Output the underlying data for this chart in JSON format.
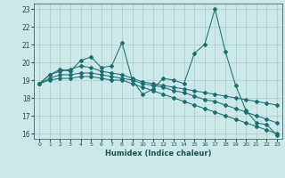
{
  "xlabel": "Humidex (Indice chaleur)",
  "ylabel": "",
  "bg_color": "#cce8e8",
  "grid_color": "#aacccc",
  "line_color": "#1a7070",
  "xlim": [
    -0.5,
    23.5
  ],
  "ylim": [
    15.7,
    23.3
  ],
  "xticks": [
    0,
    1,
    2,
    3,
    4,
    5,
    6,
    7,
    8,
    9,
    10,
    11,
    12,
    13,
    14,
    15,
    16,
    17,
    18,
    19,
    20,
    21,
    22,
    23
  ],
  "yticks": [
    16,
    17,
    18,
    19,
    20,
    21,
    22,
    23
  ],
  "series": [
    [
      18.8,
      19.3,
      19.6,
      19.5,
      20.1,
      20.3,
      19.7,
      19.8,
      21.1,
      19.0,
      18.2,
      18.5,
      19.1,
      19.0,
      18.8,
      20.5,
      21.0,
      23.0,
      20.6,
      18.7,
      17.3,
      16.6,
      16.5,
      15.9
    ],
    [
      18.8,
      19.3,
      19.5,
      19.6,
      19.8,
      19.7,
      19.5,
      19.4,
      19.3,
      19.1,
      18.9,
      18.8,
      18.7,
      18.6,
      18.5,
      18.4,
      18.3,
      18.2,
      18.1,
      18.0,
      17.9,
      17.8,
      17.7,
      17.6
    ],
    [
      18.8,
      19.1,
      19.3,
      19.3,
      19.4,
      19.4,
      19.3,
      19.2,
      19.1,
      19.0,
      18.8,
      18.7,
      18.6,
      18.4,
      18.3,
      18.1,
      17.9,
      17.8,
      17.6,
      17.4,
      17.2,
      17.0,
      16.8,
      16.6
    ],
    [
      18.8,
      19.0,
      19.1,
      19.1,
      19.2,
      19.2,
      19.1,
      19.0,
      19.0,
      18.8,
      18.6,
      18.4,
      18.2,
      18.0,
      17.8,
      17.6,
      17.4,
      17.2,
      17.0,
      16.8,
      16.6,
      16.4,
      16.2,
      16.0
    ]
  ]
}
